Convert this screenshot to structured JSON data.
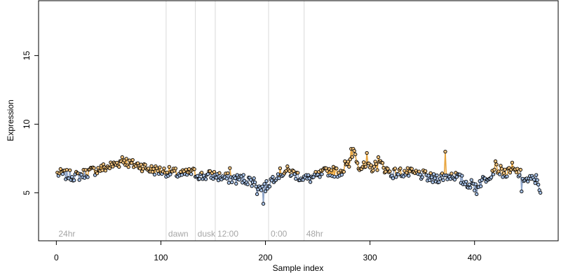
{
  "chart_data": {
    "type": "scatter",
    "xlabel": "Sample index",
    "ylabel": "Expression",
    "xlim": [
      -17,
      480
    ],
    "ylim": [
      1.5,
      19
    ],
    "x_ticks": [
      0,
      100,
      200,
      300,
      400
    ],
    "y_ticks": [
      5,
      10,
      15
    ],
    "grid": false,
    "legend": "none",
    "colors": {
      "line_below": "#8fa5c8",
      "line_above": "#e8a640",
      "point_below": "#a9c4ea",
      "point_above": "#f1c27d",
      "point_stroke": "#000000",
      "divider": "#d9d9d9",
      "section_label": "#a6a6a6",
      "axis": "#000000"
    },
    "sections": [
      {
        "x": 0,
        "label": "24hr"
      },
      {
        "x": 105,
        "label": "dawn"
      },
      {
        "x": 133,
        "label": "dusk"
      },
      {
        "x": 152,
        "label": "12:00"
      },
      {
        "x": 203,
        "label": "0:00"
      },
      {
        "x": 237,
        "label": "48hr"
      }
    ],
    "baseline": 6.4,
    "series_profile": {
      "x": [
        1,
        10,
        20,
        30,
        40,
        50,
        60,
        65,
        70,
        80,
        90,
        100,
        110,
        120,
        130,
        140,
        150,
        160,
        170,
        180,
        190,
        195,
        200,
        210,
        220,
        230,
        240,
        250,
        260,
        270,
        280,
        285,
        290,
        300,
        310,
        320,
        330,
        340,
        350,
        360,
        370,
        380,
        390,
        400,
        410,
        420,
        430,
        440,
        450,
        460,
        463
      ],
      "y": [
        6.4,
        6.3,
        6.2,
        6.5,
        6.7,
        6.9,
        7.2,
        7.4,
        7.1,
        7.0,
        6.7,
        6.6,
        6.5,
        6.3,
        6.5,
        6.2,
        6.3,
        6.1,
        6.0,
        6.0,
        5.8,
        5.3,
        5.4,
        6.3,
        6.6,
        6.3,
        6.0,
        6.2,
        6.6,
        6.5,
        7.0,
        8.0,
        6.9,
        6.8,
        7.1,
        6.4,
        6.5,
        6.4,
        6.3,
        6.0,
        6.2,
        6.3,
        5.8,
        5.5,
        6.0,
        6.8,
        6.4,
        6.6,
        5.9,
        6.0,
        5.2
      ]
    },
    "notable_points": [
      {
        "x": 198,
        "y": 4.2
      },
      {
        "x": 282,
        "y": 8.2
      },
      {
        "x": 284,
        "y": 8.2
      },
      {
        "x": 372,
        "y": 8.0
      },
      {
        "x": 192,
        "y": 4.9
      },
      {
        "x": 166,
        "y": 6.8
      },
      {
        "x": 63,
        "y": 7.6
      },
      {
        "x": 276,
        "y": 7.3
      },
      {
        "x": 297,
        "y": 7.9
      },
      {
        "x": 308,
        "y": 7.6
      },
      {
        "x": 402,
        "y": 4.9
      },
      {
        "x": 420,
        "y": 7.3
      },
      {
        "x": 436,
        "y": 7.2
      },
      {
        "x": 445,
        "y": 5.1
      },
      {
        "x": 463,
        "y": 5.0
      }
    ]
  }
}
